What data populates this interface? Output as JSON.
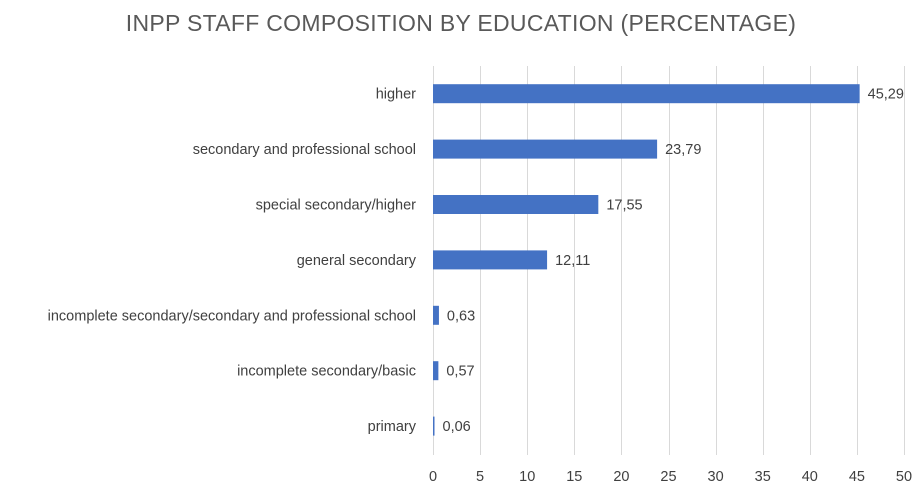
{
  "chart_data": {
    "type": "bar",
    "orientation": "horizontal",
    "title": "INPP STAFF COMPOSITION BY EDUCATION (PERCENTAGE)",
    "categories": [
      "higher",
      "secondary and professional school",
      "special secondary/higher",
      "general secondary",
      "incomplete secondary/secondary and professional school",
      "incomplete secondary/basic",
      "primary"
    ],
    "values": [
      45.29,
      23.79,
      17.55,
      12.11,
      0.63,
      0.57,
      0.06
    ],
    "value_labels": [
      "45,29",
      "23,79",
      "17,55",
      "12,11",
      "0,63",
      "0,57",
      "0,06"
    ],
    "xlim": [
      0,
      50
    ],
    "x_ticks": [
      0,
      5,
      10,
      15,
      20,
      25,
      30,
      35,
      40,
      45,
      50
    ],
    "x_tick_labels": [
      "0",
      "5",
      "10",
      "15",
      "20",
      "25",
      "30",
      "35",
      "40",
      "45",
      "50"
    ],
    "grid": true,
    "legend": "none",
    "bar_color": "#4472c4",
    "gridline_color": "#d9d9d9",
    "text_color": "#404040"
  }
}
